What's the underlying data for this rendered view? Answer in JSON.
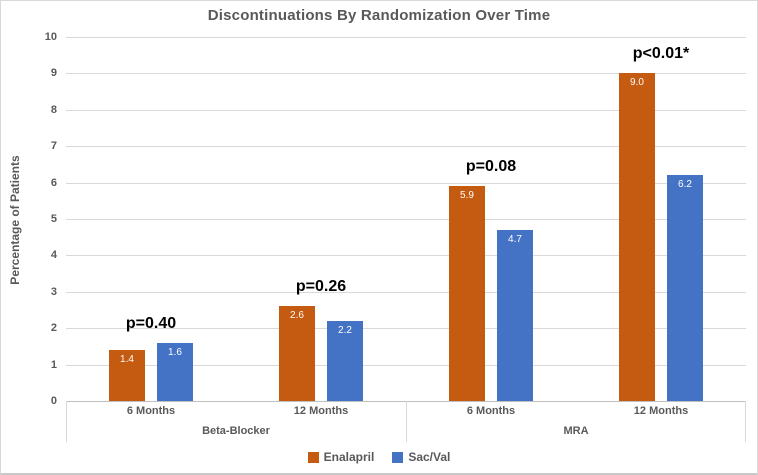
{
  "chart_data": {
    "type": "bar",
    "title": "Discontinuations By Randomization Over Time",
    "xlabel": "",
    "ylabel": "Percentage of Patients",
    "ylim": [
      0,
      10
    ],
    "ytick_step": 1,
    "grid": true,
    "legend_position": "bottom",
    "groups": [
      {
        "label": "Beta-Blocker",
        "category_indexes": [
          0,
          1
        ]
      },
      {
        "label": "MRA",
        "category_indexes": [
          2,
          3
        ]
      }
    ],
    "categories": [
      "6 Months",
      "12 Months",
      "6 Months",
      "12 Months"
    ],
    "annotations": [
      "p=0.40",
      "p=0.26",
      "p=0.08",
      "p<0.01*"
    ],
    "series": [
      {
        "name": "Enalapril",
        "color": "#C55A11",
        "values": [
          1.4,
          2.6,
          5.9,
          9.0
        ]
      },
      {
        "name": "Sac/Val",
        "color": "#4472C4",
        "values": [
          1.6,
          2.2,
          4.7,
          6.2
        ]
      }
    ],
    "value_label_decimals": 1
  },
  "colors": {
    "title_text": "#595959",
    "axis_text": "#595959",
    "gridline": "#D9D9D9",
    "axis_line": "#BFBFBF",
    "p_label_text": "#000000",
    "bar_value_text": "#FFFFFF",
    "background": "#FFFFFF"
  }
}
